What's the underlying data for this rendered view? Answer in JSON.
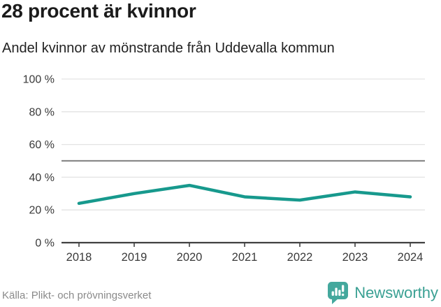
{
  "header": {
    "title": "28 procent är kvinnor",
    "subtitle": "Andel kvinnor av mönstrande från Uddevalla kommun"
  },
  "chart_data": {
    "type": "line",
    "title": "28 procent är kvinnor",
    "subtitle": "Andel kvinnor av mönstrande från Uddevalla kommun",
    "x": [
      2018,
      2019,
      2020,
      2021,
      2022,
      2023,
      2024
    ],
    "x_labels": [
      "2018",
      "2019",
      "2020",
      "2021",
      "2022",
      "2023",
      "2024"
    ],
    "series": [
      {
        "name": "andel-kvinnor",
        "label": "Andel kvinnor av mönstrande (%)",
        "values": [
          24,
          30,
          35,
          28,
          26,
          31,
          28
        ],
        "color": "#17998d"
      }
    ],
    "ylim": [
      0,
      100
    ],
    "yticks": [
      0,
      20,
      40,
      60,
      80,
      100
    ],
    "ytick_labels": [
      "0 %",
      "20 %",
      "40 %",
      "60 %",
      "80 %",
      "100 %"
    ],
    "reference_line": {
      "value": 50,
      "color": "#8a8a8a"
    },
    "grid": true,
    "legend": "none",
    "colors": {
      "grid": "#e3e3e3",
      "axis": "#404040",
      "tick_text": "#3a3a3a"
    }
  },
  "footer": {
    "source": "Källa: Plikt- och prövningsverket",
    "brand": {
      "name": "Newsworthy",
      "icon": "newsworthy-speech-bubble-bar-chart",
      "color": "#3aa093"
    }
  }
}
